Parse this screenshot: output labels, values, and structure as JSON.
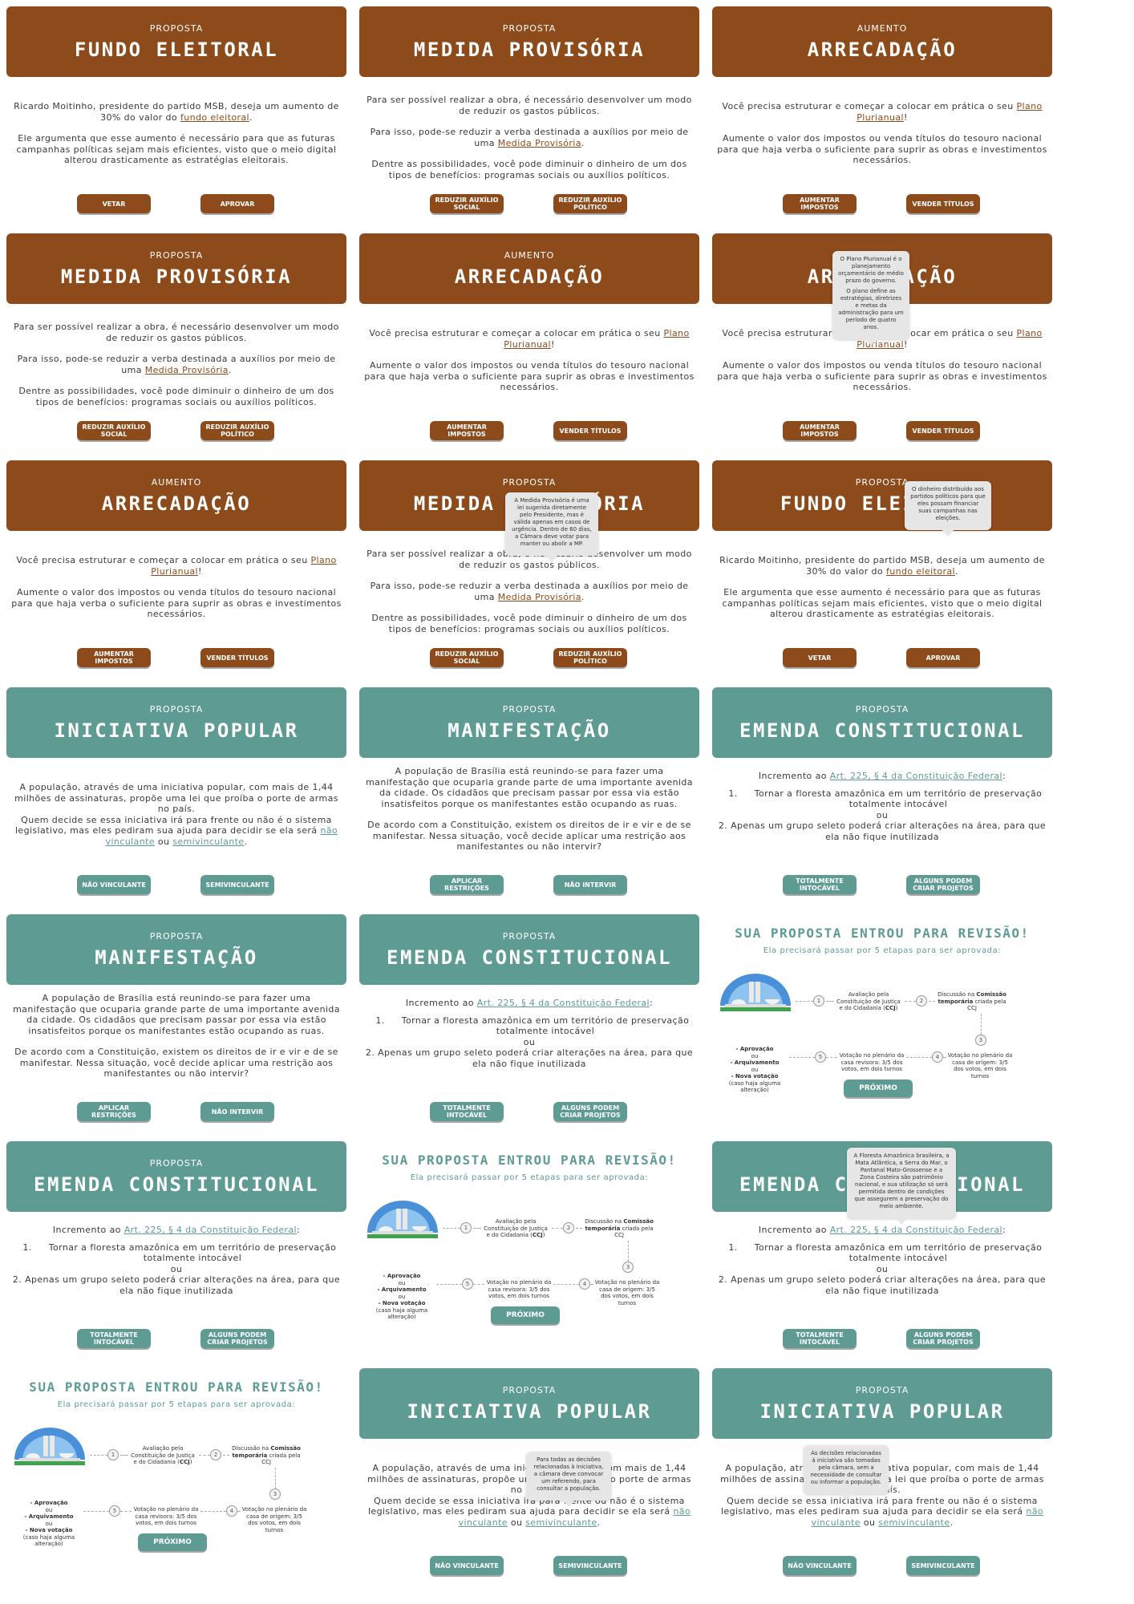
{
  "colors": {
    "brown": "#8d4a1a",
    "teal": "#5e9b93"
  },
  "fundo": {
    "kicker": "PROPOSTA",
    "title": "FUNDO ELEITORAL",
    "p1a": "Ricardo Moitinho, presidente do partido MSB, deseja um aumento de 30% do valor do ",
    "p1link": "fundo eleitoral",
    "p1b": ".",
    "p2": "Ele argumenta que esse aumento é necessário para que as futuras campanhas políticas sejam mais eficientes, visto que o meio digital alterou drasticamente as estratégias eleitorais.",
    "btn1": "VETAR",
    "btn2": "APROVAR",
    "tooltip": "O dinheiro distribuído aos partidos políticos para que eles possam financiar suas campanhas nas eleições."
  },
  "medida": {
    "kicker": "PROPOSTA",
    "title": "MEDIDA PROVISÓRIA",
    "p1": "Para ser possível realizar a obra, é necessário desenvolver um modo de reduzir os gastos públicos.",
    "p2a": "Para isso, pode-se reduzir a verba destinada a auxílios por meio de uma ",
    "p2link": "Medida Provisória",
    "p2b": ".",
    "p3": "Dentre as possibilidades, você pode diminuir o dinheiro de um dos tipos de benefícios: programas sociais ou auxílios políticos.",
    "btn1": "REDUZIR AUXÍLIO SOCIAL",
    "btn2": "REDUZIR AUXÍLIO POLÍTICO",
    "tooltip": "A Medida Provisória é uma lei sugerida diretamente pelo Presidente, mas é válida apenas em casos de urgência. Dentro de 60 dias, a Câmara deve votar para manter ou abolir a MP."
  },
  "arrecadacao": {
    "kicker": "AUMENTO",
    "title": "ARRECADAÇÃO",
    "p1a": "Você precisa estruturar e começar a colocar em prática o seu ",
    "p1link": "Plano Plurianual",
    "p1b": "!",
    "p2": "Aumente o valor dos impostos ou venda títulos do tesouro nacional para que haja verba o suficiente para suprir as obras e investimentos necessários.",
    "btn1": "AUMENTAR IMPOSTOS",
    "btn2": "VENDER TÍTULOS",
    "tooltip1": "O Plano Plurianual é o planejamento orçamentário de médio prazo do governo.",
    "tooltip2": "O plano define as estratégias, diretrizes e metas da administração para um período de quatro anos."
  },
  "iniciativa": {
    "kicker": "PROPOSTA",
    "title": "INICIATIVA POPULAR",
    "p1": "A população, através de uma iniciativa popular, com mais de 1,44 milhões de assinaturas, propõe uma lei que proíba o porte de armas no país.",
    "p2a": "Quem decide se essa iniciativa irá para frente ou não é o sistema legislativo, mas eles pediram sua ajuda para decidir se ela será ",
    "link1": "não vinculante",
    "mid": " ou ",
    "link2": "semivinculante",
    "p2b": ".",
    "btn1": "NÃO VINCULANTE",
    "btn2": "SEMIVINCULANTE",
    "tooltip1": "Para todas as decisões relacionadas à iniciativa, a câmara deve convocar um referendo, para consultar a população.",
    "tooltip2": "As decisões relacionadas à iniciativa são tomadas pela câmara, sem a necessidade de consultar ou informar a população."
  },
  "manifestacao": {
    "kicker": "PROPOSTA",
    "title": "MANIFESTAÇÃO",
    "p1": "A população de Brasília está reunindo-se para fazer uma manifestação que ocuparia grande parte de uma importante avenida da cidade. Os cidadãos que precisam passar por essa via estão insatisfeitos porque os manifestantes estão ocupando as ruas.",
    "p2": "De acordo com a Constituição, existem os direitos de ir e vir e de se manifestar. Nessa situação, você decide aplicar uma restrição aos manifestantes ou não intervir?",
    "btn1": "APLICAR RESTRIÇÕES",
    "btn2": "NÃO INTERVIR"
  },
  "emenda": {
    "kicker": "PROPOSTA",
    "title": "EMENDA CONSTITUCIONAL",
    "introa": "Incremento ao ",
    "introlink": "Art. 225, § 4 da Constituição Federal",
    "introb": ":",
    "item1num": "1.",
    "item1": "Tornar a floresta amazônica em um território de preservação totalmente intocável",
    "ou": "ou",
    "item2": "2. Apenas um grupo seleto poderá criar alterações na área, para que ela não fique inutilizada",
    "btn1": "TOTALMENTE INTOCÁVEL",
    "btn2": "ALGUNS PODEM CRIAR PROJETOS",
    "tooltip": "A Floresta Amazônica brasileira, a Mata Atlântica, a Serra do Mar, o Pantanal Mato-Grossense e a Zona Costeira são patrimônio nacional, e sua utilização só será permitida dentro de condições que assegurem a preservação do meio ambiente."
  },
  "revisao": {
    "title": "SUA PROPOSTA ENTROU PARA REVISÃO!",
    "subtitle": "Ela precisará passar por 5 etapas para ser aprovada:",
    "n1": "1",
    "n2": "2",
    "n3": "3",
    "n4": "4",
    "n5": "5",
    "s1a": "Avaliação pela Constituição de Justiça e do Cidadania (",
    "s1b": "CCJ",
    "s1c": ")",
    "s2a": "Discussão na ",
    "s2b": "Comissão temporária",
    "s2c": " criada pela CCJ",
    "s4": "Votação no plenário da casa de origem: 3/5 dos votos, em dois turnos",
    "s5": "Votação no plenário da casa revisora: 3/5 dos votos, em dois turnos",
    "o1": "- Aprovação",
    "ou1": "ou",
    "o2": "- Arquivamento",
    "ou2": "ou",
    "o3": "- Nova votação",
    "o3b": "(caso haja alguma alteração)",
    "next": "PRÓXIMO"
  }
}
